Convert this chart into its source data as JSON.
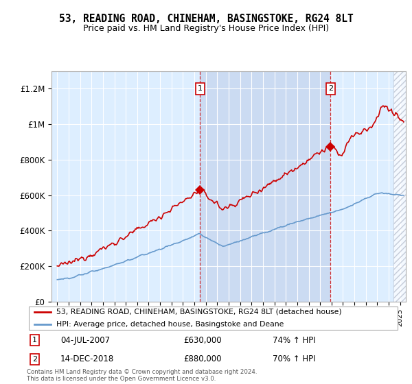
{
  "title": "53, READING ROAD, CHINEHAM, BASINGSTOKE, RG24 8LT",
  "subtitle": "Price paid vs. HM Land Registry's House Price Index (HPI)",
  "legend_line1": "53, READING ROAD, CHINEHAM, BASINGSTOKE, RG24 8LT (detached house)",
  "legend_line2": "HPI: Average price, detached house, Basingstoke and Deane",
  "footnote": "Contains HM Land Registry data © Crown copyright and database right 2024.\nThis data is licensed under the Open Government Licence v3.0.",
  "marker1_label": "1",
  "marker1_date": "04-JUL-2007",
  "marker1_price": "£630,000",
  "marker1_hpi": "74% ↑ HPI",
  "marker2_label": "2",
  "marker2_date": "14-DEC-2018",
  "marker2_price": "£880,000",
  "marker2_hpi": "70% ↑ HPI",
  "red_color": "#cc0000",
  "blue_color": "#6699cc",
  "bg_color": "#ddeeff",
  "shade_color": "#cce0ff",
  "hatch_color": "#aabbcc",
  "marker1_x": 2007.5,
  "marker2_x": 2018.92,
  "ylim_min": 0,
  "ylim_max": 1300000,
  "xlim_min": 1994.5,
  "xlim_max": 2025.5
}
